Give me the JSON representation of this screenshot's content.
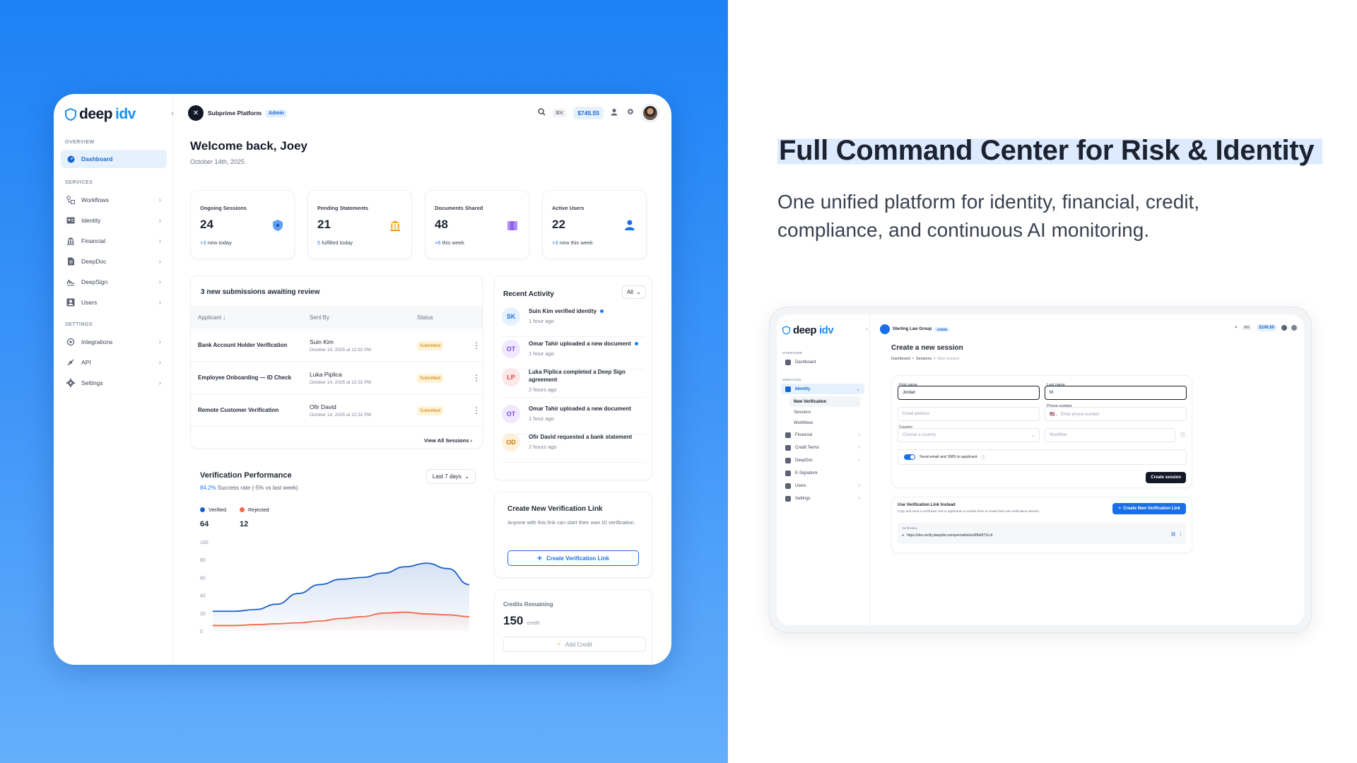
{
  "hero": {
    "headline": "Full Command Center for Risk & Identity",
    "subline": "One unified platform for identity, financial, credit, compliance, and continuous AI monitoring."
  },
  "colors": {
    "accent": "#1a8ff2",
    "background_left": "#1c82f5",
    "submitted": "#c47a00",
    "verified": "#1a5fc4",
    "rejected": "#f06a4a"
  },
  "dashboard": {
    "logo": {
      "part1": "deep",
      "part2": "idv"
    },
    "sidebar": {
      "overview_label": "OVERVIEW",
      "services_label": "SERVICES",
      "settings_label": "SETTINGS",
      "items": [
        {
          "label": "Dashboard",
          "icon": "dashboard-icon"
        },
        {
          "label": "Workflows",
          "icon": "workflows-icon"
        },
        {
          "label": "Identity",
          "icon": "identity-icon"
        },
        {
          "label": "Financial",
          "icon": "financial-icon"
        },
        {
          "label": "DeepDoc",
          "icon": "document-icon"
        },
        {
          "label": "DeepSign",
          "icon": "signature-icon"
        },
        {
          "label": "Users",
          "icon": "users-icon"
        },
        {
          "label": "Integrations",
          "icon": "integrations-icon"
        },
        {
          "label": "API",
          "icon": "api-icon"
        },
        {
          "label": "Settings",
          "icon": "gear-icon"
        }
      ]
    },
    "topbar": {
      "workspace": "Subprime Platform",
      "role": "Admin",
      "shortcut": "⌘K",
      "balance": "$745.55"
    },
    "welcome": "Welcome back, Joey",
    "date": "October 14th, 2025",
    "stats": [
      {
        "title": "Ongoing Sessions",
        "value": "24",
        "delta": "+3",
        "delta_text": " new today",
        "icon": "shield-icon"
      },
      {
        "title": "Pending Statements",
        "value": "21",
        "delta": "5",
        "delta_text": " fulfilled today",
        "icon": "bank-icon"
      },
      {
        "title": "Documents Shared",
        "value": "48",
        "delta": "+6",
        "delta_text": " this week",
        "icon": "folder-icon"
      },
      {
        "title": "Active Users",
        "value": "22",
        "delta": "+3",
        "delta_text": " new this week",
        "icon": "user-icon"
      }
    ],
    "submissions": {
      "title": "3 new submissions awaiting review",
      "columns": [
        "Applicant",
        "Sent By",
        "Status"
      ],
      "rows": [
        {
          "applicant": "Bank Account Holder Verification",
          "sent_by": "Suin Kim",
          "date": "October 14, 2025 at 12:32 PM",
          "status": "Submitted"
        },
        {
          "applicant": "Employee Onboarding — ID Check",
          "sent_by": "Luka Piplica",
          "date": "October 14, 2025 at 12:32 PM",
          "status": "Submitted"
        },
        {
          "applicant": "Remote Customer Verification",
          "sent_by": "Ofir David",
          "date": "October 14, 2025 at 12:32 PM",
          "status": "Submitted"
        }
      ],
      "view_all": "View All Sessions"
    },
    "performance": {
      "title": "Verification Performance",
      "rate": "84.2%",
      "rate_text": " Success rate  (-5% vs last week)",
      "range": "Last 7 days",
      "verified_label": "Verified",
      "rejected_label": "Rejected",
      "verified_value": "64",
      "rejected_value": "12"
    },
    "activity": {
      "title": "Recent Activity",
      "filter": "All",
      "items": [
        {
          "initials": "SK",
          "text": "Suin Kim verified identity",
          "time": "1 hour ago",
          "unread": true
        },
        {
          "initials": "OT",
          "text": "Omar Tahir uploaded a new document",
          "time": "1 hour ago",
          "unread": true
        },
        {
          "initials": "LP",
          "text": "Luka Piplica completed a Deep Sign agreement",
          "time": "2 hours ago",
          "unread": false
        },
        {
          "initials": "OT",
          "text": "Omar Tahir uploaded a new document",
          "time": "1 hour ago",
          "unread": false
        },
        {
          "initials": "OD",
          "text": "Ofir David requested a bank statement",
          "time": "2 hours ago",
          "unread": false
        }
      ]
    },
    "link_card": {
      "title": "Create New Verification Link",
      "desc": "Anyone with this link can start their own ID verification.",
      "button": "Create Verification Link"
    },
    "credits": {
      "label": "Credits Remaining",
      "value": "150",
      "unit": "credit",
      "button": "Add Credit"
    }
  },
  "chart_data": {
    "type": "area",
    "x": [
      0,
      1,
      2,
      3,
      4,
      5,
      6,
      7,
      8,
      9,
      10,
      11,
      12
    ],
    "ylim": [
      0,
      100
    ],
    "yticks": [
      "100",
      "80",
      "60",
      "40",
      "20",
      "0"
    ],
    "series": [
      {
        "name": "Verified",
        "values": [
          22,
          22,
          24,
          30,
          42,
          52,
          58,
          60,
          65,
          72,
          76,
          70,
          52
        ]
      },
      {
        "name": "Rejected",
        "values": [
          6,
          6,
          7,
          8,
          9,
          11,
          14,
          16,
          20,
          21,
          19,
          18,
          16
        ]
      }
    ],
    "grid": false,
    "legend": "top-left"
  },
  "session": {
    "logo": {
      "part1": "deep",
      "part2": "idv"
    },
    "workspace": "Sterling Law Group",
    "role": "ADMIN",
    "shortcut": "⌘K",
    "balance": "$249.80",
    "sidebar": {
      "overview_label": "OVERVIEW",
      "services_label": "SERVICES",
      "items": [
        {
          "label": "Dashboard"
        },
        {
          "label": "Identity"
        },
        {
          "label": "New Verification"
        },
        {
          "label": "Sessions"
        },
        {
          "label": "Workflows"
        },
        {
          "label": "Financial"
        },
        {
          "label": "Credit Terms"
        },
        {
          "label": "DeepDoc"
        },
        {
          "label": "E-Signature"
        },
        {
          "label": "Users"
        },
        {
          "label": "Settings"
        }
      ]
    },
    "title": "Create a new session",
    "breadcrumb": [
      "Dashboard",
      "Sessions",
      "New session"
    ],
    "form": {
      "first_name_label": "First name",
      "first_name_value": "Jordan",
      "last_name_label": "Last name",
      "last_name_value": "M",
      "email_placeholder": "Email address",
      "phone_label": "Phone number",
      "phone_placeholder": "Enter phone number",
      "country_label": "Country",
      "country_placeholder": "Choose a country",
      "workflow_placeholder": "Workflow",
      "toggle_label": "Send email and SMS to applicant",
      "submit": "Create session"
    },
    "link": {
      "title": "Use Verification Link Instead",
      "desc": "Copy and send a verification link to applicants to enable them to create their own verification session.",
      "button": "Create New Verification Link",
      "field_label": "Verification",
      "url": "https://dev-verify.deepidv.com/permalink/ed2fbd9711c6"
    }
  }
}
